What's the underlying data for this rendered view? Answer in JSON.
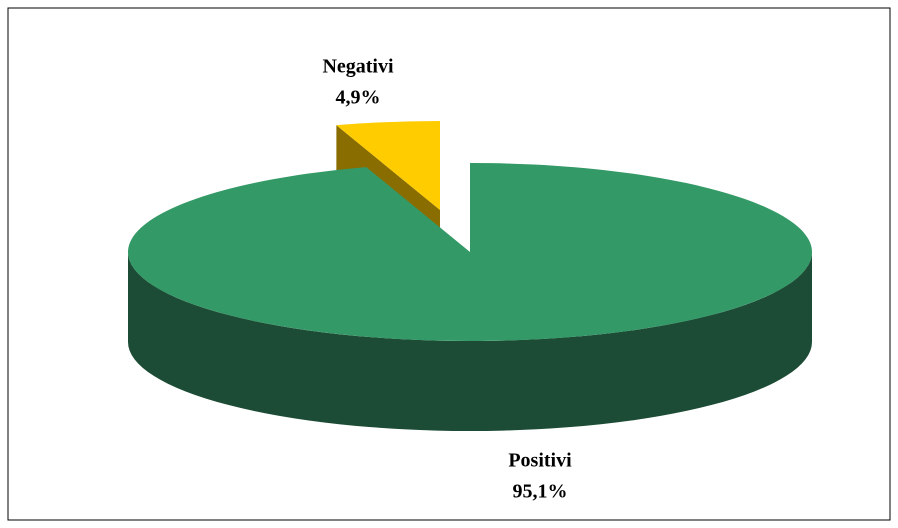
{
  "chart_data": {
    "type": "pie",
    "categories": [
      "Negativi",
      "Positivi"
    ],
    "values": [
      4.9,
      95.1
    ],
    "value_labels": [
      "4,9%",
      "95,1%"
    ],
    "colors": [
      "#ffcc00",
      "#339966"
    ],
    "side_colors": [
      "#8a6d00",
      "#1c4c35"
    ]
  }
}
